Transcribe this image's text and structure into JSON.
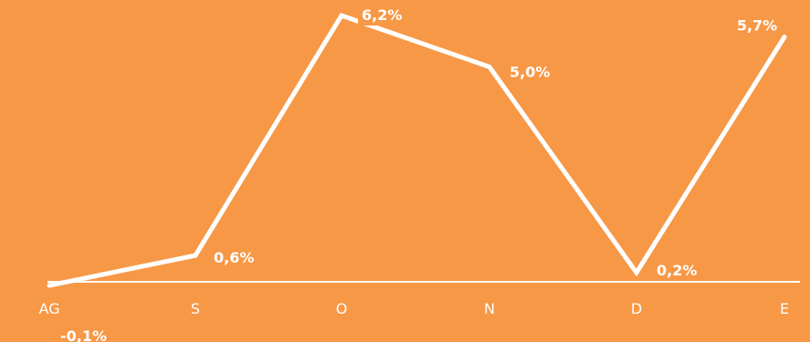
{
  "chart_data": {
    "type": "line",
    "categories": [
      "AG",
      "S",
      "O",
      "N",
      "D",
      "E"
    ],
    "values": [
      -0.1,
      0.6,
      6.2,
      5.0,
      0.2,
      5.7
    ],
    "data_labels": [
      "-0,1%",
      "0,6%",
      "6,2%",
      "5,0%",
      "0,2%",
      "5,7%"
    ],
    "title": "",
    "xlabel": "",
    "ylabel": "",
    "ylim": [
      -0.1,
      6.2
    ],
    "grid": false,
    "legend": "none"
  },
  "colors": {
    "background": "#F79846",
    "line": "#FFFFFF",
    "text": "#FFFFFF"
  }
}
